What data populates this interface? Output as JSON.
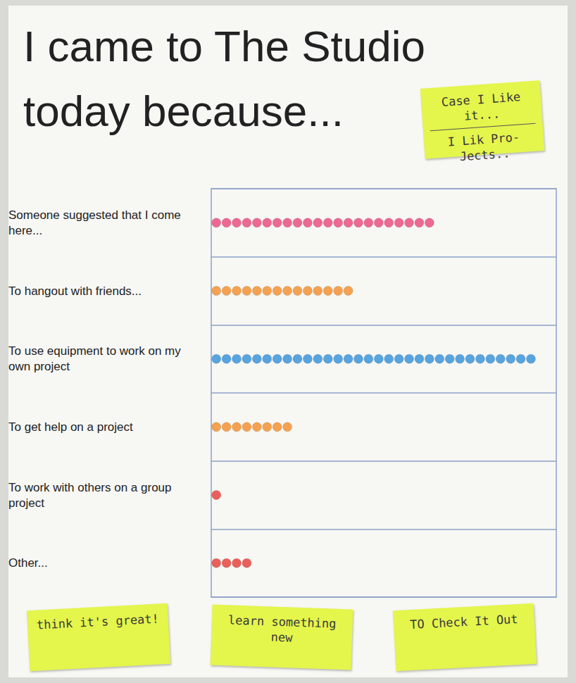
{
  "chart_data": {
    "type": "dot",
    "title": "I came to The Studio today because...",
    "categories": [
      "Someone suggested that I come here...",
      "To hangout with friends...",
      "To use equipment to work on my own project",
      "To get help on a project",
      "To work with others on a group project",
      "Other..."
    ],
    "values": [
      22,
      14,
      32,
      8,
      1,
      4
    ],
    "colors": [
      "#e8457a",
      "#f28c28",
      "#2f8fd8",
      "#f28c28",
      "#e53935",
      "#e53935"
    ],
    "marker": "circle",
    "xlim": [
      0,
      34
    ],
    "tick_labels": "y",
    "grid": true,
    "annotations": [
      "Case I Like it...",
      "I Lik Pro-Jects..",
      "think it's great!",
      "learn something new",
      "TO Check It Out"
    ]
  }
}
